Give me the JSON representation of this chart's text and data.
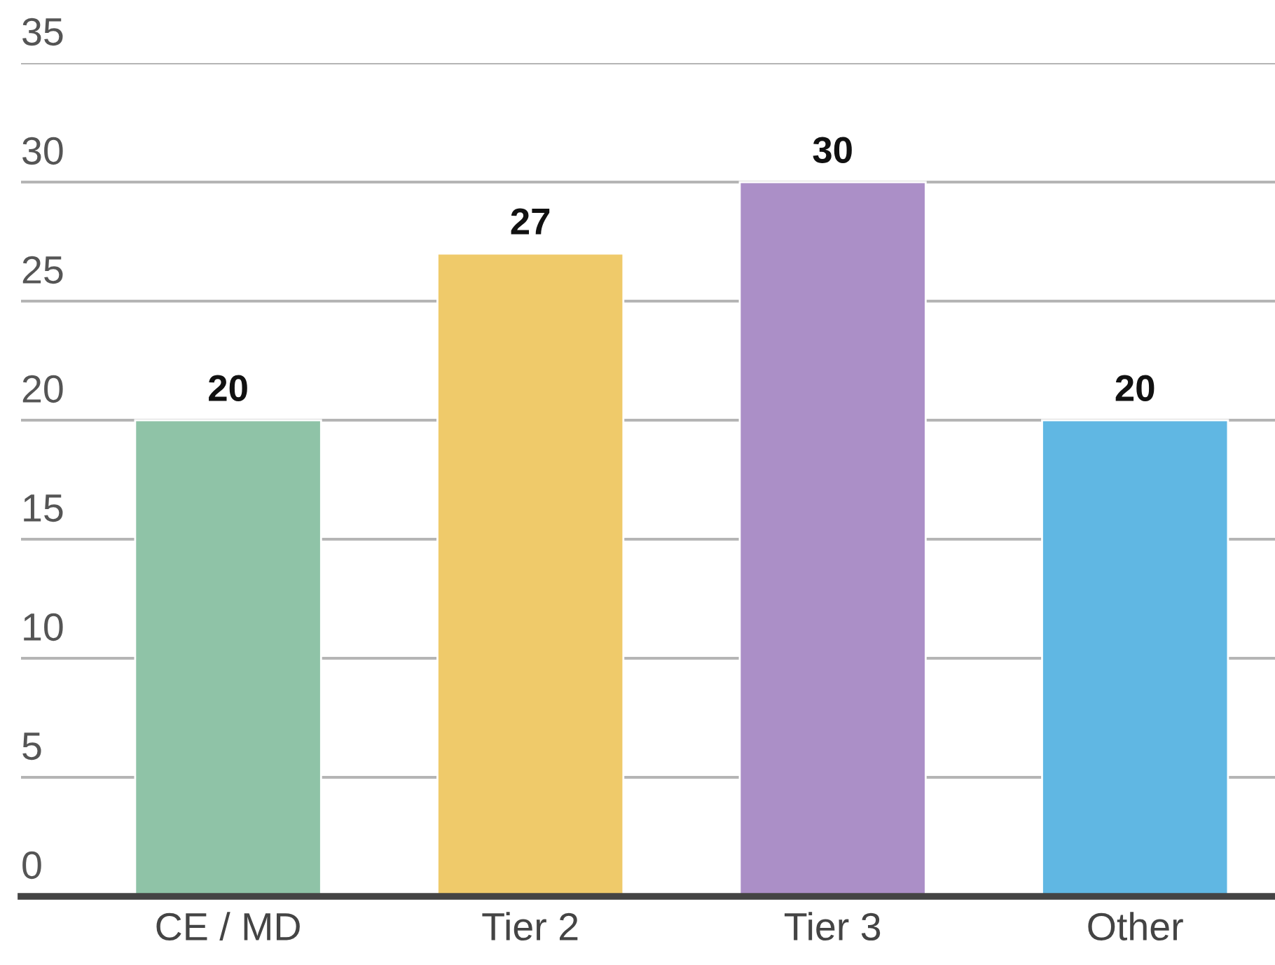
{
  "chart_data": {
    "type": "bar",
    "categories": [
      "CE / MD",
      "Tier 2",
      "Tier 3",
      "Other"
    ],
    "values": [
      20,
      27,
      30,
      20
    ],
    "colors": [
      "#8fc3a7",
      "#efca6a",
      "#ab8fc7",
      "#60b7e3"
    ],
    "ylim": [
      0,
      35
    ],
    "yticks": [
      0,
      5,
      10,
      15,
      20,
      25,
      30,
      35
    ],
    "grid": "y",
    "data_labels": true
  }
}
